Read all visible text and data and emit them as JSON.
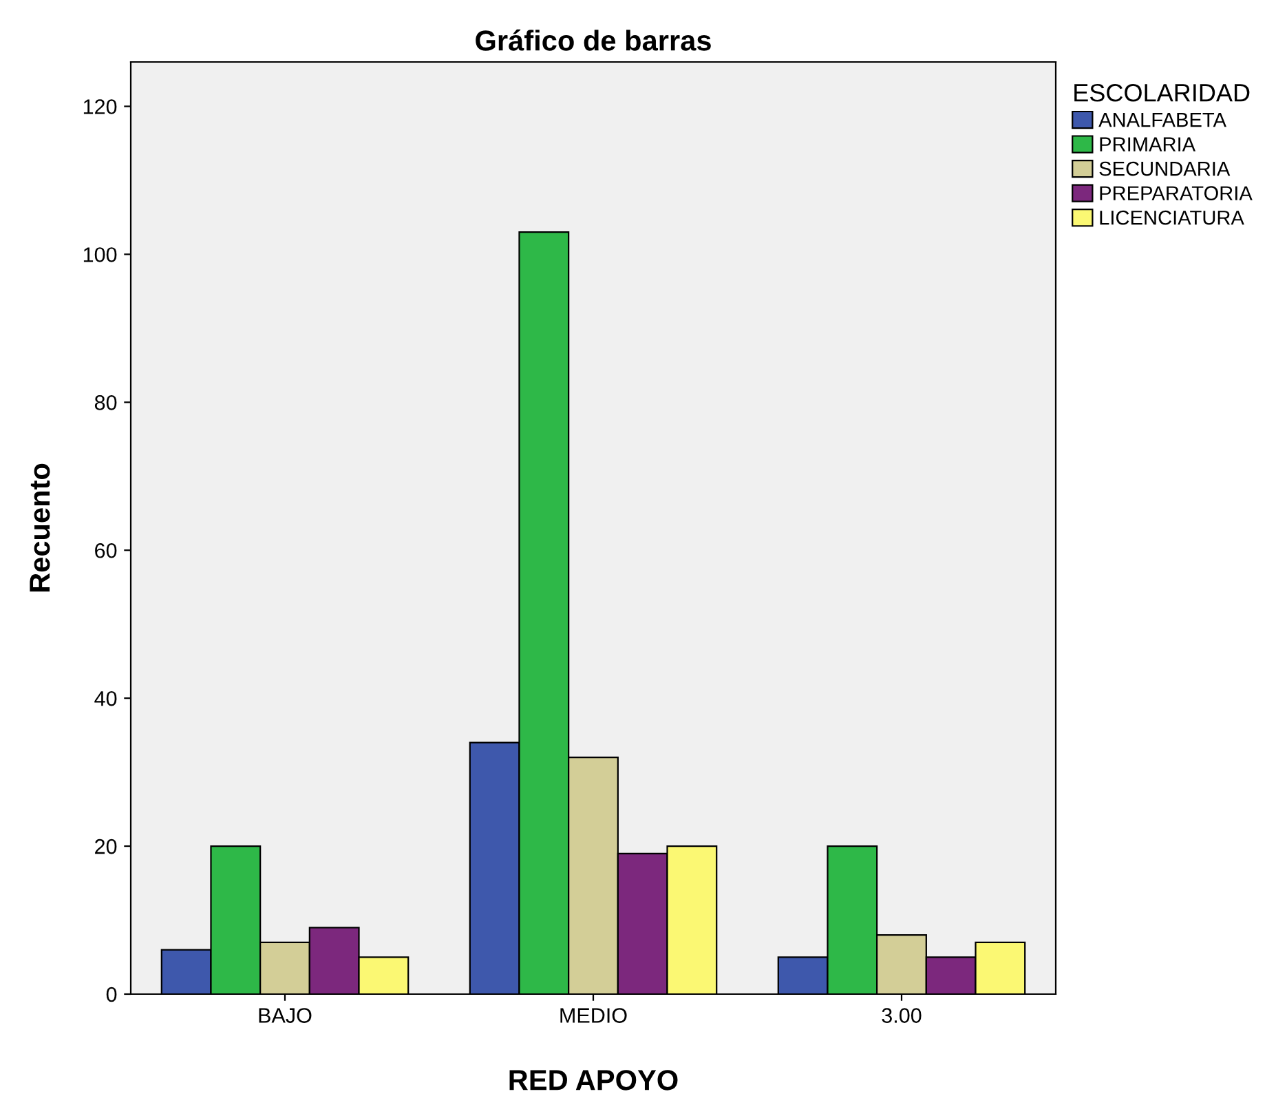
{
  "chart_data": {
    "type": "bar",
    "title": "Gráfico de barras",
    "xlabel": "RED APOYO",
    "ylabel": "Recuento",
    "legend_title": "ESCOLARIDAD",
    "categories": [
      "BAJO",
      "MEDIO",
      "3.00"
    ],
    "series": [
      {
        "name": "ANALFABETA",
        "color": "#3e58ac",
        "values": [
          6,
          34,
          5
        ]
      },
      {
        "name": "PRIMARIA",
        "color": "#2eb848",
        "values": [
          20,
          103,
          20
        ]
      },
      {
        "name": "SECUNDARIA",
        "color": "#d3ce97",
        "values": [
          7,
          32,
          8
        ]
      },
      {
        "name": "PREPARATORIA",
        "color": "#7c287d",
        "values": [
          9,
          19,
          5
        ]
      },
      {
        "name": "LICENCIATURA",
        "color": "#fbf873",
        "values": [
          5,
          20,
          7
        ]
      }
    ],
    "ylim": [
      0,
      126
    ],
    "yticks": [
      0,
      20,
      40,
      60,
      80,
      100,
      120
    ],
    "grid": false,
    "legend": "top right"
  }
}
